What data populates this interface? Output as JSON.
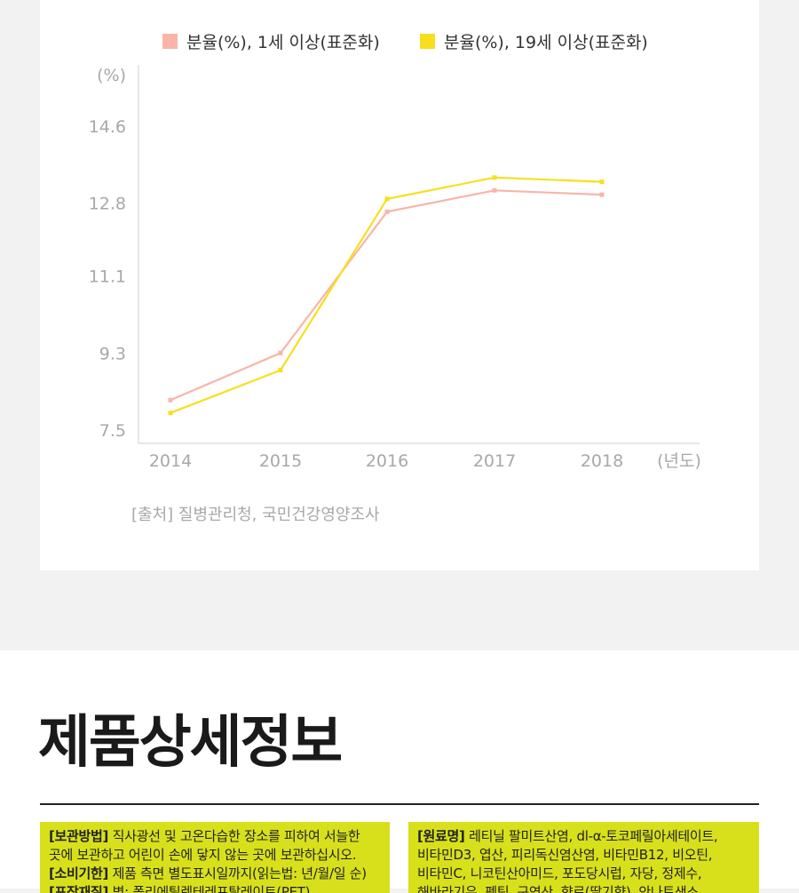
{
  "chart_data": {
    "type": "line",
    "y_unit_label": "(%)",
    "x_unit_label": "(년도)",
    "categories": [
      "2014",
      "2015",
      "2016",
      "2017",
      "2018"
    ],
    "yticks": [
      "14.6",
      "12.8",
      "11.1",
      "9.3",
      "7.5"
    ],
    "ylim": [
      7.5,
      15.5
    ],
    "series": [
      {
        "name": "분율(%), 1세 이상(표준화)",
        "color": "#f9b5a8",
        "values": [
          8.2,
          9.3,
          12.6,
          13.1,
          13.0
        ]
      },
      {
        "name": "분율(%), 19세 이상(표준화)",
        "color": "#f7df1e",
        "values": [
          7.9,
          8.9,
          12.9,
          13.4,
          13.3
        ]
      }
    ],
    "source": "[출처] 질병관리청, 국민건강영양조사"
  },
  "product": {
    "title": "제품상세정보",
    "left_lines": [
      {
        "label": "[보관방법]",
        "text": " 직사광선 및 고온다습한 장소를 피하여 서늘한"
      },
      {
        "label": "",
        "text": "곳에 보관하고 어린이 손에 닿지 않는 곳에 보관하십시오."
      },
      {
        "label": "[소비기한]",
        "text": " 제품 측면 별도표시일까지(읽는법: 년/월/일 순)"
      },
      {
        "label": "[포장재질]",
        "text": " 병: 폴리에틸렌테레프탈레이트(PET)"
      }
    ],
    "right_lines": [
      {
        "label": "[원료명]",
        "text": " 레티닐 팔미트산염, dl-α-토코페릴아세테이트,"
      },
      {
        "label": "",
        "text": "비타민D3, 엽산, 피리독신염산염, 비타민B12, 비오틴,"
      },
      {
        "label": "",
        "text": "비타민C, 니코틴산아미드, 포도당시럽, 자당, 정제수,"
      },
      {
        "label": "",
        "text": "해바라기유, 펙틴, 구연산, 향료(딸기향), 안나토색소"
      }
    ]
  }
}
